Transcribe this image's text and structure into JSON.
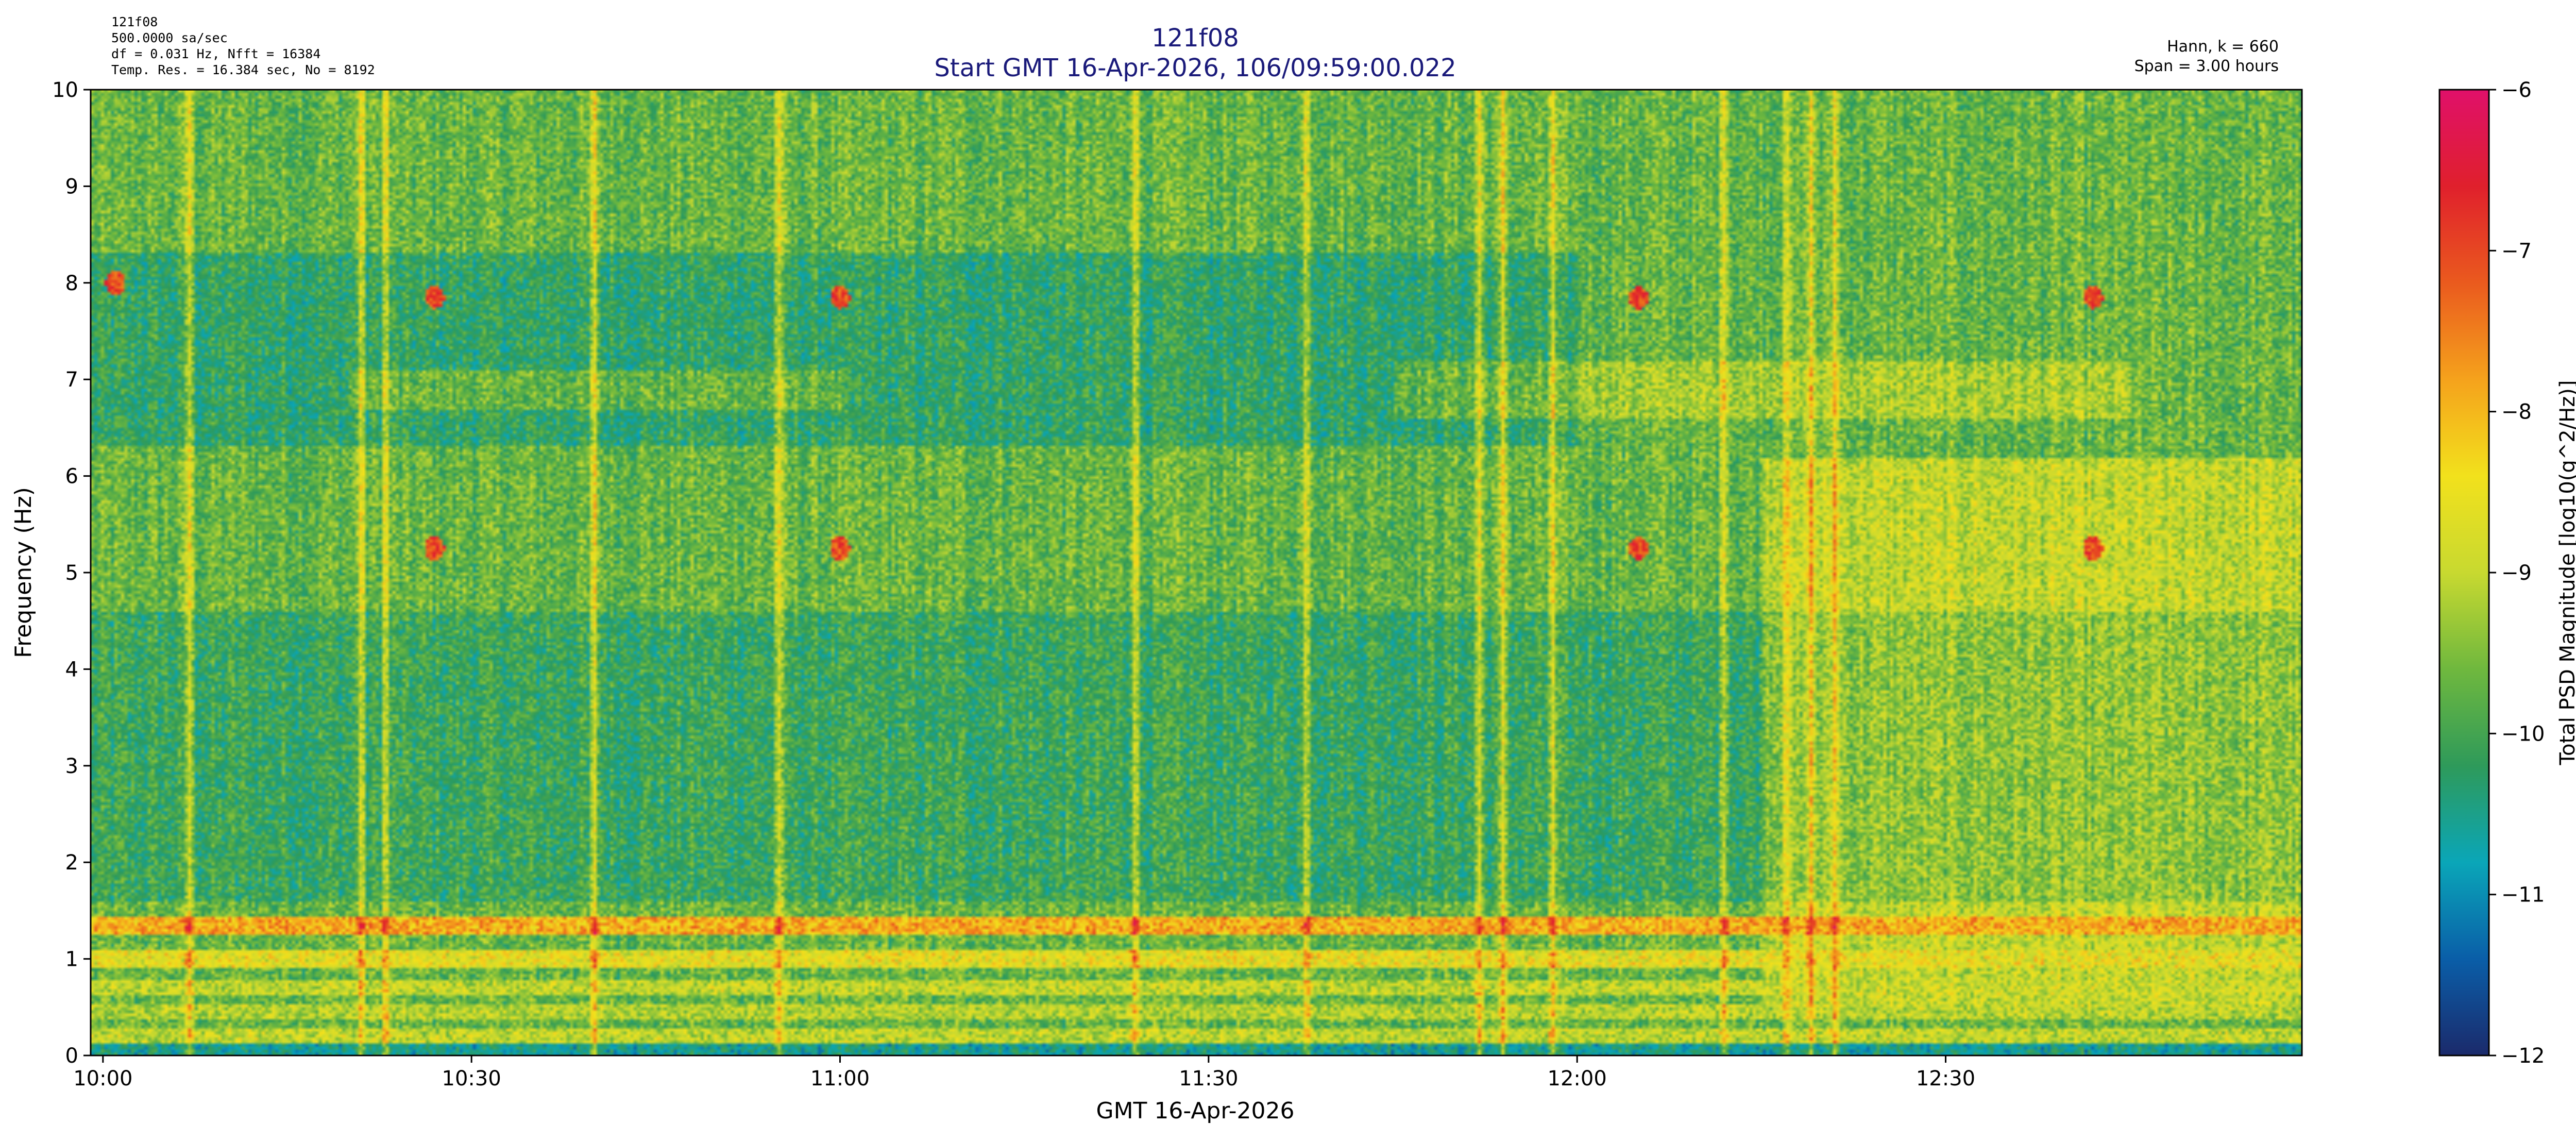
{
  "chart_data": {
    "type": "heatmap",
    "title": "121f08",
    "subtitle": "Start GMT 16-Apr-2026, 106/09:59:00.022",
    "header_left": [
      "121f08",
      "500.0000 sa/sec",
      "df = 0.031 Hz,  Nfft = 16384",
      "Temp. Res. = 16.384 sec, No = 8192"
    ],
    "header_right": [
      "Hann, k = 660",
      "Span = 3.00 hours"
    ],
    "xlabel": "GMT 16-Apr-2026",
    "ylabel": "Frequency (Hz)",
    "colorbar_label": "Total PSD Magnitude [log10(g^2/Hz)]",
    "x_tick_labels": [
      "10:00",
      "10:30",
      "11:00",
      "11:30",
      "12:00",
      "12:30"
    ],
    "x_tick_minutes": [
      0,
      30,
      60,
      90,
      120,
      150
    ],
    "x_range_minutes": [
      -1,
      179
    ],
    "y_ticks": [
      0,
      1,
      2,
      3,
      4,
      5,
      6,
      7,
      8,
      9,
      10
    ],
    "ylim": [
      0,
      10
    ],
    "clim": [
      -12,
      -6
    ],
    "colorbar_ticks": [
      -12,
      -11,
      -10,
      -9,
      -8,
      -7,
      -6
    ],
    "colormap": [
      "#1b2a6b",
      "#0a5ea8",
      "#0aa6b8",
      "#2e9a5a",
      "#6fb83e",
      "#c8d930",
      "#f2e11c",
      "#f5a21c",
      "#ea5a1e",
      "#e0202c",
      "#e0106a"
    ],
    "title_color": "#1a1a7a",
    "grid": false,
    "features": {
      "horizontal_bands_hz": [
        {
          "freq": 1.35,
          "level": -7.9
        },
        {
          "freq": 1.0,
          "level": -8.6
        },
        {
          "freq": 0.7,
          "level": -9.0
        },
        {
          "freq": 0.45,
          "level": -9.1
        },
        {
          "freq": 0.2,
          "level": -9.0
        }
      ],
      "bright_spots": [
        {
          "minute": 1,
          "freq": 8.0
        },
        {
          "minute": 27,
          "freq": 7.85
        },
        {
          "minute": 27,
          "freq": 5.25
        },
        {
          "minute": 60,
          "freq": 7.85
        },
        {
          "minute": 60,
          "freq": 5.25
        },
        {
          "minute": 125,
          "freq": 7.85
        },
        {
          "minute": 125,
          "freq": 5.25
        },
        {
          "minute": 162,
          "freq": 7.85
        },
        {
          "minute": 162,
          "freq": 5.25
        }
      ],
      "vertical_streaks_minutes": [
        7,
        21,
        23,
        40,
        55,
        84,
        98,
        112,
        114,
        118,
        132,
        137,
        139,
        141
      ]
    }
  }
}
